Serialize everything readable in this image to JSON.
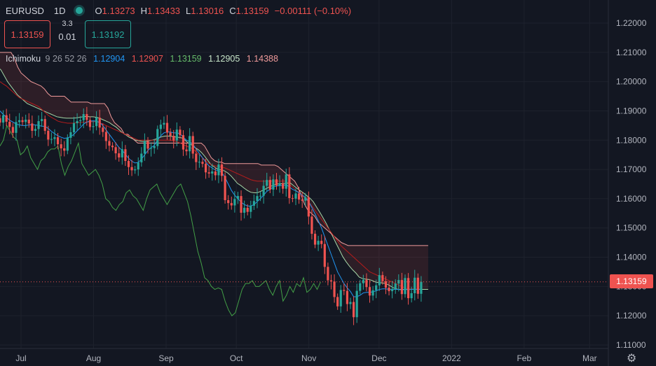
{
  "header": {
    "symbol": "EURUSD",
    "timeframe": "1D",
    "open_key": "O",
    "open": "1.13273",
    "high_key": "H",
    "high": "1.13433",
    "low_key": "L",
    "low": "1.13016",
    "close_key": "C",
    "close": "1.13159",
    "change": "−0.00111 (−0.10%)"
  },
  "trade": {
    "sell_price": "1.13159",
    "spread_top": "3.3",
    "spread_bottom": "0.01",
    "buy_price": "1.13192"
  },
  "indicator": {
    "name": "Ichimoku",
    "params": "9 26 52 26",
    "v1": "1.12904",
    "v2": "1.12907",
    "v3": "1.13159",
    "v4": "1.12905",
    "v5": "1.14388"
  },
  "last_price_label": "1.13159",
  "colors": {
    "up": "#26a69a",
    "down": "#ef5350",
    "conversion": "#2196f3",
    "base": "#b71c1c",
    "lagging": "#43a047",
    "leadA": "#a5d6a7",
    "leadB": "#ef9a9a",
    "bg": "#131722"
  },
  "chart_data": {
    "type": "candlestick",
    "y_ticks": [
      "1.22000",
      "1.21000",
      "1.20000",
      "1.19000",
      "1.18000",
      "1.17000",
      "1.16000",
      "1.15000",
      "1.14000",
      "1.13000",
      "1.12000",
      "1.11000"
    ],
    "ylim": [
      1.11,
      1.22
    ],
    "x_ticks": [
      "Jul",
      "Aug",
      "Sep",
      "Oct",
      "Nov",
      "Dec",
      "2022",
      "Feb",
      "Mar"
    ],
    "x_tick_days": [
      0,
      31,
      62,
      92,
      123,
      153,
      184,
      215,
      243
    ],
    "xlim_days": [
      -9,
      251
    ],
    "close": [
      1.186,
      1.1885,
      1.1863,
      1.1845,
      1.1825,
      1.1862,
      1.1868,
      1.1862,
      1.187,
      1.1857,
      1.1832,
      1.1838,
      1.1865,
      1.1872,
      1.1832,
      1.1802,
      1.1804,
      1.181,
      1.1786,
      1.1772,
      1.1764,
      1.1808,
      1.1827,
      1.1858,
      1.1865,
      1.1868,
      1.1889,
      1.1869,
      1.1845,
      1.1848,
      1.1877,
      1.1843,
      1.1828,
      1.1797,
      1.1781,
      1.1776,
      1.1755,
      1.1741,
      1.1769,
      1.1729,
      1.1708,
      1.1697,
      1.17,
      1.1724,
      1.1754,
      1.1796,
      1.1771,
      1.1773,
      1.178,
      1.1838,
      1.1853,
      1.1859,
      1.1826,
      1.1815,
      1.1799,
      1.1836,
      1.1817,
      1.1768,
      1.1762,
      1.1814,
      1.1754,
      1.1725,
      1.1726,
      1.1719,
      1.169,
      1.1686,
      1.1693,
      1.168,
      1.1717,
      1.1678,
      1.1595,
      1.1585,
      1.1577,
      1.1599,
      1.1609,
      1.1552,
      1.1569,
      1.1555,
      1.1576,
      1.1592,
      1.1609,
      1.161,
      1.1644,
      1.1664,
      1.1631,
      1.1666,
      1.1645,
      1.1653,
      1.1634,
      1.1683,
      1.1602,
      1.16,
      1.1618,
      1.1597,
      1.1593,
      1.1605,
      1.1539,
      1.148,
      1.1443,
      1.1456,
      1.1445,
      1.1367,
      1.1321,
      1.1317,
      1.1264,
      1.1232,
      1.1288,
      1.1285,
      1.124,
      1.1247,
      1.1195,
      1.1285,
      1.1311,
      1.1323,
      1.1298,
      1.1269,
      1.1287,
      1.1304,
      1.1339,
      1.1318,
      1.1296,
      1.1284,
      1.1292,
      1.131,
      1.1322,
      1.1274,
      1.1329,
      1.126,
      1.1277,
      1.133,
      1.1275,
      1.1316
    ],
    "conversion": [
      1.19,
      1.1888,
      1.1878,
      1.1868,
      1.1862,
      1.1855,
      1.1852,
      1.185,
      1.185,
      1.1852,
      1.1853,
      1.1852,
      1.185,
      1.1848,
      1.1847,
      1.184,
      1.183,
      1.1822,
      1.1815,
      1.181,
      1.1806,
      1.1808,
      1.1812,
      1.182,
      1.1832,
      1.1843,
      1.1855,
      1.1862,
      1.1865,
      1.1866,
      1.1865,
      1.186,
      1.185,
      1.1835,
      1.182,
      1.1805,
      1.179,
      1.1775,
      1.1765,
      1.1752,
      1.1738,
      1.1728,
      1.1722,
      1.1724,
      1.1735,
      1.175,
      1.1765,
      1.1775,
      1.1782,
      1.18,
      1.1815,
      1.1825,
      1.1828,
      1.1828,
      1.1825,
      1.1825,
      1.1822,
      1.181,
      1.18,
      1.1795,
      1.1785,
      1.177,
      1.1755,
      1.174,
      1.1725,
      1.1712,
      1.1705,
      1.1698,
      1.1695,
      1.169,
      1.1672,
      1.165,
      1.1628,
      1.1612,
      1.16,
      1.1588,
      1.158,
      1.1575,
      1.1575,
      1.158,
      1.159,
      1.16,
      1.1612,
      1.1625,
      1.1632,
      1.164,
      1.1643,
      1.1645,
      1.1645,
      1.1648,
      1.164,
      1.1632,
      1.1627,
      1.162,
      1.1612,
      1.1605,
      1.159,
      1.157,
      1.1548,
      1.1525,
      1.15,
      1.147,
      1.144,
      1.141,
      1.138,
      1.135,
      1.133,
      1.131,
      1.1295,
      1.1283,
      1.1265,
      1.1265,
      1.127,
      1.1278,
      1.128,
      1.128,
      1.1282,
      1.1285,
      1.129,
      1.1292,
      1.1292,
      1.129,
      1.129,
      1.129,
      1.129,
      1.1288,
      1.129,
      1.1289,
      1.129,
      1.129,
      1.129,
      1.129
    ],
    "base": [
      1.2,
      1.1992,
      1.1985,
      1.1975,
      1.1965,
      1.1955,
      1.1945,
      1.194,
      1.1935,
      1.193,
      1.1925,
      1.192,
      1.1915,
      1.1905,
      1.1895,
      1.1885,
      1.1878,
      1.1872,
      1.1865,
      1.1862,
      1.186,
      1.1858,
      1.1858,
      1.1858,
      1.186,
      1.186,
      1.1862,
      1.1862,
      1.1863,
      1.1863,
      1.1863,
      1.186,
      1.1855,
      1.185,
      1.1845,
      1.184,
      1.1835,
      1.183,
      1.1825,
      1.182,
      1.1815,
      1.181,
      1.1805,
      1.18,
      1.18,
      1.18,
      1.18,
      1.18,
      1.18,
      1.18,
      1.18,
      1.18,
      1.18,
      1.18,
      1.1798,
      1.1795,
      1.179,
      1.1785,
      1.178,
      1.1775,
      1.177,
      1.176,
      1.175,
      1.174,
      1.173,
      1.172,
      1.1715,
      1.1712,
      1.171,
      1.1708,
      1.1705,
      1.17,
      1.1695,
      1.169,
      1.1685,
      1.168,
      1.1675,
      1.167,
      1.1665,
      1.1662,
      1.166,
      1.166,
      1.166,
      1.166,
      1.166,
      1.166,
      1.166,
      1.166,
      1.166,
      1.166,
      1.165,
      1.164,
      1.163,
      1.162,
      1.161,
      1.16,
      1.159,
      1.1575,
      1.156,
      1.1545,
      1.153,
      1.1515,
      1.15,
      1.1485,
      1.147,
      1.1455,
      1.144,
      1.143,
      1.142,
      1.141,
      1.14,
      1.139,
      1.138,
      1.137,
      1.136,
      1.135,
      1.1345,
      1.134,
      1.1335,
      1.133,
      1.1325,
      1.132,
      1.1315,
      1.131,
      1.1305,
      1.13,
      1.1295,
      1.1292,
      1.1291,
      1.1291,
      1.1291,
      1.1291
    ],
    "leadA": [
      1.205,
      1.204,
      1.202,
      1.2,
      1.1985,
      1.197,
      1.1955,
      1.1945,
      1.1935,
      1.1925,
      1.192,
      1.1915,
      1.191,
      1.1905,
      1.19,
      1.1895,
      1.189,
      1.1885,
      1.188,
      1.1878,
      1.1876,
      1.1875,
      1.1875,
      1.1875,
      1.1876,
      1.1878,
      1.188,
      1.1881,
      1.188,
      1.188,
      1.1878,
      1.1875,
      1.187,
      1.1865,
      1.186,
      1.1852,
      1.1845,
      1.1835,
      1.1825,
      1.1818,
      1.181,
      1.1805,
      1.18,
      1.1798,
      1.1796,
      1.1796,
      1.1798,
      1.18,
      1.1803,
      1.1808,
      1.1812,
      1.1814,
      1.1814,
      1.1813,
      1.1811,
      1.181,
      1.1808,
      1.18,
      1.179,
      1.1784,
      1.1775,
      1.1768,
      1.1758,
      1.1745,
      1.173,
      1.1715,
      1.1708,
      1.17,
      1.1698,
      1.1695,
      1.1688,
      1.1678,
      1.1665,
      1.1652,
      1.1645,
      1.1636,
      1.1628,
      1.1622,
      1.162,
      1.162,
      1.1625,
      1.163,
      1.1636,
      1.1642,
      1.1646,
      1.165,
      1.1651,
      1.1652,
      1.1652,
      1.1654,
      1.1645,
      1.1636,
      1.1628,
      1.162,
      1.1611,
      1.1602,
      1.159,
      1.1572,
      1.1554,
      1.1535,
      1.1515,
      1.1492,
      1.147,
      1.1447,
      1.1425,
      1.1402,
      1.1385,
      1.137,
      1.1357,
      1.1346,
      1.1332,
      1.1327,
      1.1325,
      1.1324,
      1.132,
      1.1315,
      1.1313,
      1.1312,
      1.131,
      1.1305,
      1.1298,
      1.1292,
      1.129,
      1.129,
      1.129,
      1.129,
      1.1291,
      1.129,
      1.129,
      1.129,
      1.129,
      1.129
    ],
    "leadB": [
      1.21,
      1.21,
      1.21,
      1.21,
      1.21,
      1.208,
      1.205,
      1.203,
      1.202,
      1.201,
      1.2,
      1.1995,
      1.199,
      1.1985,
      1.1975,
      1.196,
      1.195,
      1.195,
      1.195,
      1.195,
      1.195,
      1.194,
      1.193,
      1.193,
      1.193,
      1.193,
      1.193,
      1.193,
      1.1925,
      1.1925,
      1.1925,
      1.1925,
      1.1925,
      1.191,
      1.188,
      1.186,
      1.185,
      1.184,
      1.182,
      1.182,
      1.181,
      1.18,
      1.179,
      1.179,
      1.179,
      1.179,
      1.179,
      1.179,
      1.179,
      1.179,
      1.179,
      1.179,
      1.179,
      1.179,
      1.179,
      1.179,
      1.179,
      1.179,
      1.179,
      1.179,
      1.179,
      1.179,
      1.178,
      1.176,
      1.174,
      1.173,
      1.1725,
      1.1725,
      1.172,
      1.172,
      1.172,
      1.172,
      1.172,
      1.172,
      1.172,
      1.172,
      1.172,
      1.172,
      1.172,
      1.1715,
      1.1715,
      1.1715,
      1.1715,
      1.1715,
      1.171,
      1.17,
      1.169,
      1.168,
      1.167,
      1.166,
      1.164,
      1.161,
      1.158,
      1.156,
      1.155,
      1.154,
      1.152,
      1.151,
      1.15,
      1.149,
      1.148,
      1.147,
      1.146,
      1.145,
      1.1445,
      1.144,
      1.144,
      1.144,
      1.144,
      1.144,
      1.144,
      1.144,
      1.144,
      1.144,
      1.144,
      1.144,
      1.144,
      1.144,
      1.144,
      1.144,
      1.144,
      1.144,
      1.144,
      1.144,
      1.144,
      1.144,
      1.144,
      1.144,
      1.144,
      1.144
    ],
    "lagging": [
      1.178,
      1.18,
      1.185,
      1.183,
      1.181,
      1.18,
      1.175,
      1.176,
      1.178,
      1.174,
      1.172,
      1.17,
      1.173,
      1.174,
      1.176,
      1.177,
      1.177,
      1.178,
      1.172,
      1.168,
      1.171,
      1.173,
      1.176,
      1.179,
      1.172,
      1.17,
      1.168,
      1.169,
      1.17,
      1.168,
      1.165,
      1.16,
      1.159,
      1.157,
      1.156,
      1.158,
      1.159,
      1.162,
      1.163,
      1.161,
      1.16,
      1.158,
      1.156,
      1.16,
      1.163,
      1.164,
      1.165,
      1.162,
      1.16,
      1.158,
      1.16,
      1.162,
      1.164,
      1.165,
      1.162,
      1.159,
      1.154,
      1.148,
      1.142,
      1.138,
      1.133,
      1.132,
      1.13,
      1.129,
      1.1295,
      1.129,
      1.125,
      1.122,
      1.12,
      1.121,
      1.125,
      1.129,
      1.131,
      1.131,
      1.132,
      1.13,
      1.13,
      1.131,
      1.132,
      1.129,
      1.127,
      1.13,
      1.132,
      1.125,
      1.127,
      1.13,
      1.128,
      1.131,
      1.13,
      1.133,
      1.128,
      1.129,
      1.131,
      1.129,
      1.1315
    ]
  }
}
